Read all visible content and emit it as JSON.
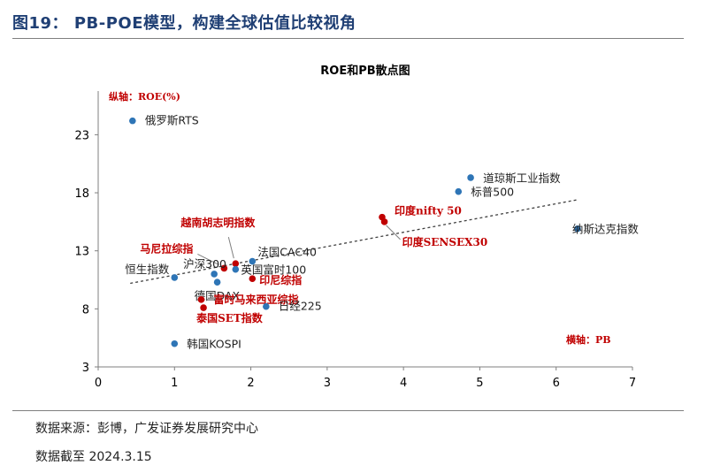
{
  "figure_title": "图19： PB-POE模型，构建全球估值比较视角",
  "source": "数据来源：彭博，广发证券发展研究中心",
  "as_of": "数据截至 2024.3.15",
  "colors": {
    "blue": "#2e75b6",
    "red": "#c00000",
    "title": "#1f3f74",
    "axis": "#7f7f7f"
  },
  "chart_data": {
    "type": "scatter",
    "title": "ROE和PB散点图",
    "ylabel": "纵轴：ROE(%)",
    "xlabel": "横轴：PB",
    "xlim": [
      0,
      7
    ],
    "ylim": [
      3,
      26
    ],
    "xticks": [
      0,
      1,
      2,
      3,
      4,
      5,
      6,
      7
    ],
    "yticks": [
      3,
      8,
      13,
      18,
      23
    ],
    "points": [
      {
        "label": "俄罗斯RTS",
        "x": 0.45,
        "y": 24.2,
        "group": "other"
      },
      {
        "label": "道琼斯工业指数",
        "x": 4.88,
        "y": 19.3,
        "group": "other"
      },
      {
        "label": "标普500",
        "x": 4.72,
        "y": 18.1,
        "group": "other"
      },
      {
        "label": "纳斯达克指数",
        "x": 6.28,
        "y": 14.9,
        "group": "other"
      },
      {
        "label": "印度nifty 50",
        "x": 3.72,
        "y": 15.9,
        "group": "emerging"
      },
      {
        "label": "印度SENSEX30",
        "x": 3.75,
        "y": 15.5,
        "group": "emerging"
      },
      {
        "label": "越南胡志明指数",
        "x": 1.8,
        "y": 11.9,
        "group": "emerging"
      },
      {
        "label": "马尼拉综指",
        "x": 1.65,
        "y": 11.5,
        "group": "emerging"
      },
      {
        "label": "法国CAC40",
        "x": 2.02,
        "y": 12.1,
        "group": "other"
      },
      {
        "label": "沪深300",
        "x": 1.52,
        "y": 11.0,
        "group": "other"
      },
      {
        "label": "英国富时100",
        "x": 1.8,
        "y": 11.4,
        "group": "other"
      },
      {
        "label": "恒生指数",
        "x": 1.0,
        "y": 10.7,
        "group": "other"
      },
      {
        "label": "德国DAX",
        "x": 1.56,
        "y": 10.3,
        "group": "other"
      },
      {
        "label": "印尼综指",
        "x": 2.02,
        "y": 10.6,
        "group": "emerging"
      },
      {
        "label": "富时马来西亚综指",
        "x": 1.35,
        "y": 8.8,
        "group": "emerging"
      },
      {
        "label": "泰国SET指数",
        "x": 1.38,
        "y": 8.1,
        "group": "emerging"
      },
      {
        "label": "日经225",
        "x": 2.2,
        "y": 8.2,
        "group": "other"
      },
      {
        "label": "韩国KOSPI",
        "x": 1.0,
        "y": 5.0,
        "group": "other"
      }
    ],
    "trendline": {
      "x": [
        0.42,
        6.28
      ],
      "y": [
        10.2,
        17.4
      ],
      "style": "dashed"
    }
  }
}
